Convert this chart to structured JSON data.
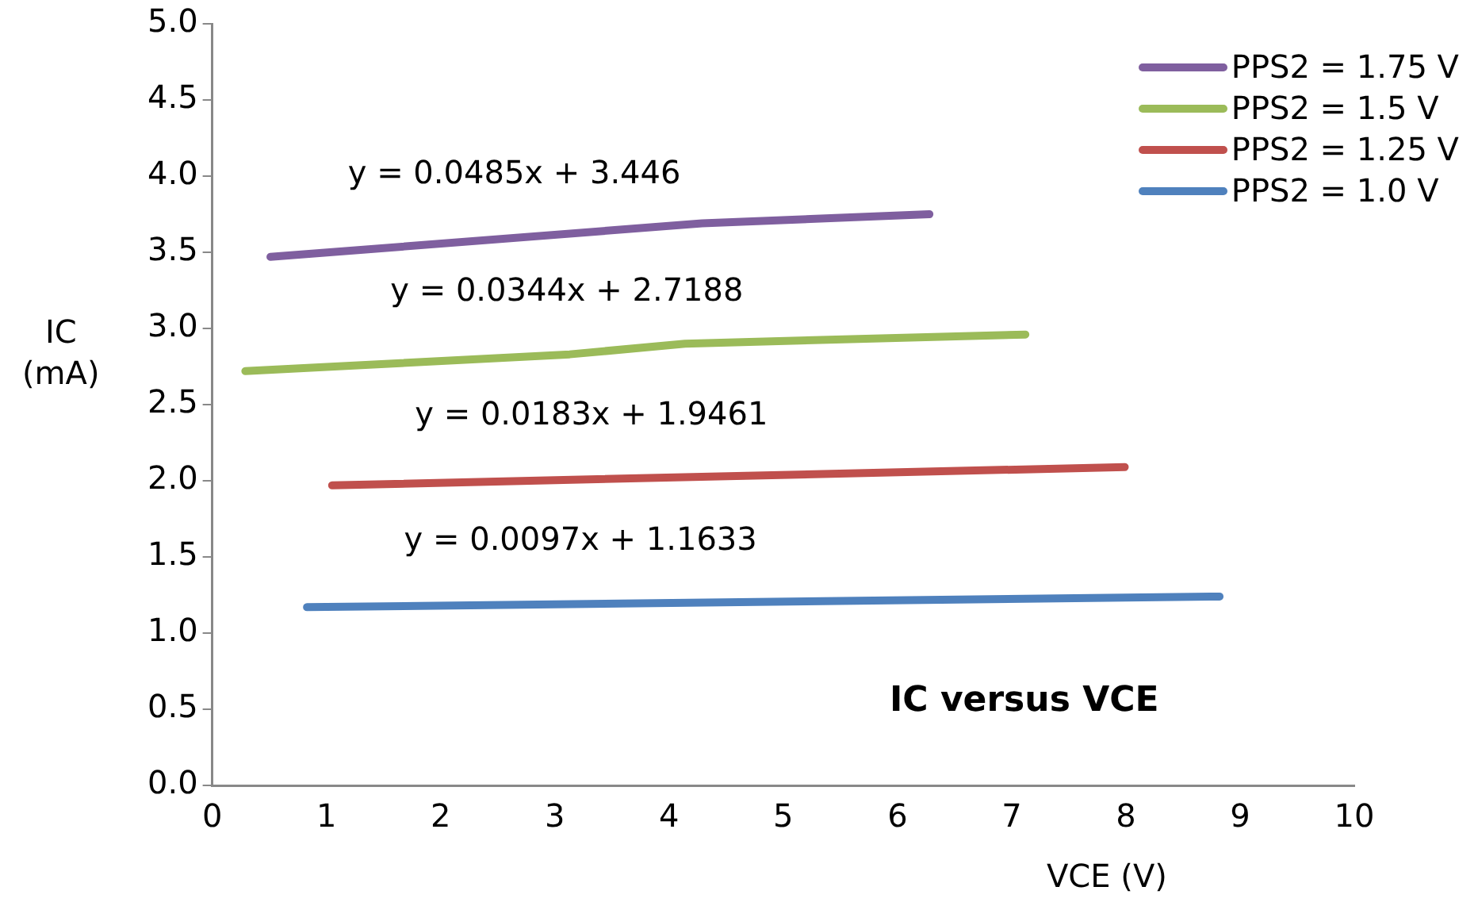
{
  "chart_data": {
    "type": "line",
    "title": "IC versus VCE",
    "xlabel": "VCE (V)",
    "ylabel": "IC\n(mA)",
    "xlim": [
      0,
      10
    ],
    "xticks": [
      0,
      1,
      2,
      3,
      4,
      5,
      6,
      7,
      8,
      9,
      10
    ],
    "ylim": [
      0,
      5
    ],
    "yticks": [
      {
        "value": 0,
        "label": "0.0"
      },
      {
        "value": 0.5,
        "label": "0.5"
      },
      {
        "value": 1,
        "label": "1.0"
      },
      {
        "value": 1.5,
        "label": "1.5"
      },
      {
        "value": 2,
        "label": "2.0"
      },
      {
        "value": 2.5,
        "label": "2.5"
      },
      {
        "value": 3,
        "label": "3.0"
      },
      {
        "value": 3.5,
        "label": "3.5"
      },
      {
        "value": 4,
        "label": "4.0"
      },
      {
        "value": 4.5,
        "label": "4.5"
      },
      {
        "value": 5,
        "label": "5.0"
      }
    ],
    "grid": false,
    "legend": "top right",
    "marker": "none",
    "line_style": "solid",
    "series": [
      {
        "name": "PPS2 = 1.75 V",
        "color": "#7f5f9f",
        "x": [
          0.51,
          4.29,
          6.28
        ],
        "values": [
          3.47,
          3.69,
          3.75
        ]
      },
      {
        "name": "PPS2 = 1.5 V",
        "color": "#9bbb59",
        "x": [
          0.29,
          3.13,
          4.14,
          7.12
        ],
        "values": [
          2.72,
          2.83,
          2.9,
          2.96
        ]
      },
      {
        "name": "PPS2 = 1.25 V",
        "color": "#c0504d",
        "x": [
          1.05,
          7.99
        ],
        "values": [
          1.97,
          2.09
        ]
      },
      {
        "name": "PPS2 = 1.0 V",
        "color": "#4f81bd",
        "x": [
          0.83,
          8.82
        ],
        "values": [
          1.17,
          1.24
        ]
      }
    ],
    "annotations": [
      "y = 0.0485x + 3.446",
      "y = 0.0344x + 2.7188",
      "y = 0.0183x + 1.9461",
      "y = 0.0097x + 1.1633"
    ]
  }
}
